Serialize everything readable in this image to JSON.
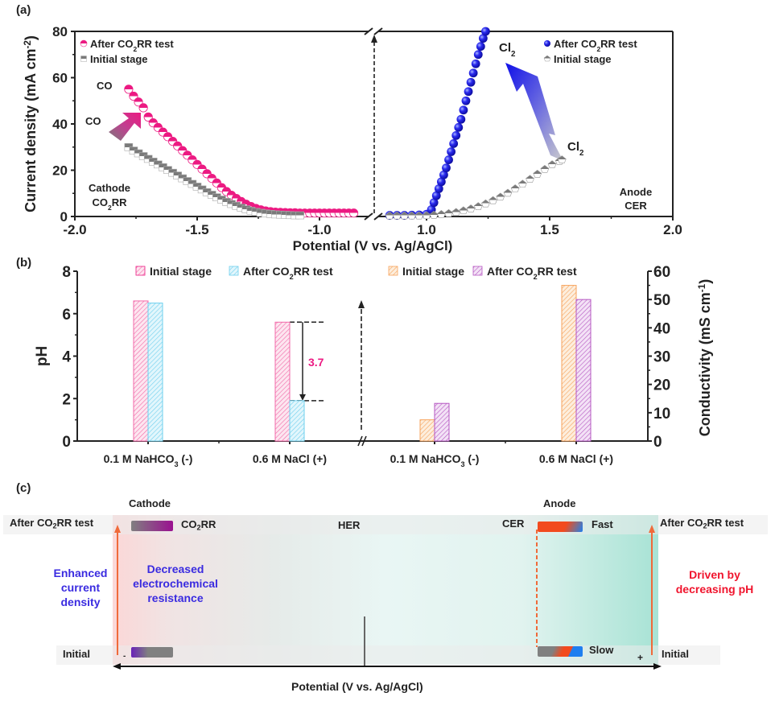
{
  "panels": {
    "a": {
      "letter": "(a)"
    },
    "b": {
      "letter": "(b)"
    },
    "c": {
      "letter": "(c)"
    }
  },
  "chart_data": [
    {
      "id": "a",
      "type": "scatter",
      "title": "",
      "xlabel": "Potential (V vs. Ag/AgCl)",
      "ylabel": "Current density (mA cm^-2)",
      "ylabel_main": "Current density",
      "ylabel_unit": "(mA cm",
      "ylabel_sup": "-2",
      "ylabel_close": ")",
      "xlabel_main": "Potential",
      "xlabel_unit": "(V vs. Ag/AgCl)",
      "axis_break": true,
      "x_left_range": [
        -2.0,
        -0.83
      ],
      "x_right_range": [
        0.83,
        2.0
      ],
      "ylim": [
        0,
        80
      ],
      "yticks": [
        0,
        20,
        40,
        60,
        80
      ],
      "xticks_left": [
        "-2.0",
        "-1.5",
        "-1.0"
      ],
      "xticks_left_values": [
        -2.0,
        -1.5,
        -1.0
      ],
      "xticks_right": [
        "1.0",
        "1.5",
        "2.0"
      ],
      "xticks_right_values": [
        1.0,
        1.5,
        2.0
      ],
      "series": [
        {
          "name": "After CO2RR test (cathode)",
          "side": "left",
          "color": "#ec1a82",
          "marker": "half-circle",
          "x": [
            -1.78,
            -1.76,
            -1.74,
            -1.72,
            -1.7,
            -1.68,
            -1.66,
            -1.64,
            -1.62,
            -1.6,
            -1.58,
            -1.56,
            -1.54,
            -1.52,
            -1.5,
            -1.48,
            -1.46,
            -1.44,
            -1.42,
            -1.4,
            -1.38,
            -1.36,
            -1.34,
            -1.32,
            -1.3,
            -1.28,
            -1.26,
            -1.24,
            -1.22,
            -1.2,
            -1.18,
            -1.16,
            -1.14,
            -1.12,
            -1.1,
            -1.08,
            -1.06,
            -1.04,
            -1.02,
            -1.0,
            -0.98,
            -0.96,
            -0.94,
            -0.92,
            -0.9,
            -0.88,
            -0.86
          ],
          "y": [
            55,
            52,
            49.5,
            47,
            43,
            40.5,
            38.5,
            36.5,
            34.5,
            32.5,
            30.5,
            28.5,
            26.5,
            24.5,
            22.5,
            20.5,
            18.5,
            16.5,
            14.5,
            12.5,
            10.8,
            9.2,
            7.8,
            6.5,
            5.3,
            4.3,
            3.5,
            2.9,
            2.4,
            2.1,
            1.9,
            1.8,
            1.7,
            1.6,
            1.6,
            1.5,
            1.5,
            1.5,
            1.5,
            1.5,
            1.5,
            1.5,
            1.5,
            1.5,
            1.5,
            1.5,
            1.5
          ]
        },
        {
          "name": "Initial stage (cathode)",
          "side": "left",
          "color": "#808080",
          "marker": "half-square",
          "x": [
            -1.78,
            -1.76,
            -1.74,
            -1.72,
            -1.7,
            -1.68,
            -1.66,
            -1.64,
            -1.62,
            -1.6,
            -1.58,
            -1.56,
            -1.54,
            -1.52,
            -1.5,
            -1.48,
            -1.46,
            -1.44,
            -1.42,
            -1.4,
            -1.38,
            -1.36,
            -1.34,
            -1.32,
            -1.3,
            -1.28,
            -1.26,
            -1.24,
            -1.22,
            -1.2,
            -1.18,
            -1.16,
            -1.14,
            -1.12,
            -1.1,
            -1.08
          ],
          "y": [
            30,
            28.5,
            27.3,
            26.1,
            24.9,
            23.7,
            22.5,
            21.3,
            20.1,
            18.9,
            17.7,
            16.5,
            15.3,
            14.1,
            12.9,
            11.7,
            10.5,
            9.4,
            8.3,
            7.3,
            6.3,
            5.4,
            4.6,
            3.8,
            3.1,
            2.5,
            2.0,
            1.6,
            1.3,
            1.1,
            0.9,
            0.8,
            0.7,
            0.6,
            0.5,
            0.5
          ]
        },
        {
          "name": "After CO2RR test (anode)",
          "side": "right",
          "color": "#1a1adc",
          "marker": "sphere",
          "x": [
            0.85,
            0.88,
            0.91,
            0.94,
            0.97,
            1.0,
            1.02,
            1.03,
            1.04,
            1.05,
            1.06,
            1.07,
            1.08,
            1.09,
            1.1,
            1.11,
            1.12,
            1.13,
            1.14,
            1.15,
            1.16,
            1.17,
            1.18,
            1.19,
            1.2,
            1.21,
            1.22,
            1.23,
            1.24
          ],
          "y": [
            0.5,
            0.5,
            0.5,
            0.6,
            0.7,
            1.0,
            3,
            6,
            9,
            12,
            15,
            18,
            21,
            24.5,
            28,
            31.5,
            35,
            38.5,
            42,
            46,
            50,
            54,
            58,
            62,
            66,
            70,
            73.5,
            77,
            80
          ]
        },
        {
          "name": "Initial stage (anode)",
          "side": "right",
          "color": "#8a8a8a",
          "marker": "half-pentagon",
          "x": [
            0.85,
            0.88,
            0.91,
            0.94,
            0.97,
            1.0,
            1.03,
            1.06,
            1.09,
            1.12,
            1.15,
            1.18,
            1.21,
            1.24,
            1.27,
            1.3,
            1.33,
            1.36,
            1.39,
            1.42,
            1.45,
            1.48,
            1.51,
            1.54,
            1.55
          ],
          "y": [
            0.3,
            0.3,
            0.3,
            0.3,
            0.3,
            0.4,
            0.6,
            0.9,
            1.3,
            1.8,
            2.5,
            3.3,
            4.3,
            5.5,
            6.9,
            8.4,
            10.1,
            12.0,
            14.0,
            16.1,
            18.3,
            20.4,
            22.4,
            23.9,
            24.5
          ]
        }
      ],
      "legend_left": [
        {
          "label": "After CO",
          "sub": "2",
          "rest": "RR test",
          "color": "#ec1a82"
        },
        {
          "label": "Initial stage",
          "sub": "",
          "rest": "",
          "color": "#808080"
        }
      ],
      "legend_right": [
        {
          "label": "After CO",
          "sub": "2",
          "rest": "RR test",
          "color": "#1a1adc"
        },
        {
          "label": "Initial stage",
          "sub": "",
          "rest": "",
          "color": "#8a8a8a"
        }
      ],
      "annotations": {
        "co_upper": "CO",
        "co_lower": "CO",
        "cl2_upper": "Cl",
        "cl2_lower": "Cl",
        "cl2_sub": "2",
        "cathode_line1": "Cathode",
        "cathode_line2": "CO",
        "cathode_line2_sub": "2",
        "cathode_line2_rest": "RR",
        "anode_line1": "Anode",
        "anode_line2": "CER"
      },
      "legend_placement": "top-left / top-right"
    },
    {
      "id": "b",
      "type": "bar",
      "categories_left": [
        "0.1 M NaHCO3 (-)",
        "0.6 M NaCl (+)"
      ],
      "categories_right": [
        "0.1 M NaHCO3 (-)",
        "0.6 M NaCl (+)"
      ],
      "cat_labels": [
        {
          "pre": "0.1 M NaHCO",
          "sub": "3",
          "post": " (-)"
        },
        {
          "pre": "0.6 M NaCl (+)",
          "sub": "",
          "post": ""
        }
      ],
      "ylabel_left": "pH",
      "ylim_left": [
        0,
        8
      ],
      "yticks_left": [
        0,
        2,
        4,
        6,
        8
      ],
      "ylabel_right": "Conductivity (mS cm^-1)",
      "ylabel_right_main": "Conductivity (mS cm",
      "ylabel_right_sup": "-1",
      "ylabel_right_close": ")",
      "ylim_right": [
        0,
        60
      ],
      "yticks_right": [
        0,
        10,
        20,
        30,
        40,
        50,
        60
      ],
      "series_left": [
        {
          "name": "Initial stage",
          "color": "#f26aa9",
          "values": [
            6.6,
            5.6
          ]
        },
        {
          "name": "After CO2RR test",
          "color": "#6fd0ee",
          "values": [
            6.5,
            1.9
          ]
        }
      ],
      "series_right": [
        {
          "name": "Initial stage",
          "color": "#f7a35c",
          "values": [
            7.5,
            55
          ]
        },
        {
          "name": "After CO2RR test",
          "color": "#b657c2",
          "values": [
            13.3,
            50
          ]
        }
      ],
      "legend_left": [
        {
          "label": "Initial stage",
          "sub": "",
          "rest": ""
        },
        {
          "label": "After CO",
          "sub": "2",
          "rest": "RR test"
        }
      ],
      "legend_right": [
        {
          "label": "Initial stage",
          "sub": "",
          "rest": ""
        },
        {
          "label": "After CO",
          "sub": "2",
          "rest": "RR test"
        }
      ],
      "annotation_delta": "3.7",
      "annotation_color": "#ec1a82",
      "legend_placement": "top"
    }
  ],
  "schematic": {
    "cathode_label": "Cathode",
    "anode_label": "Anode",
    "row_top_left": {
      "pre": "After CO",
      "sub": "2",
      "post": "RR test"
    },
    "row_top_right": {
      "pre": "After CO",
      "sub": "2",
      "post": "RR test"
    },
    "row_bottom_left": "Initial",
    "row_bottom_right": "Initial",
    "co2rr": {
      "pre": "CO",
      "sub": "2",
      "post": "RR"
    },
    "her": "HER",
    "cer": "CER",
    "fast": "Fast",
    "slow": "Slow",
    "minus": "-",
    "plus": "+",
    "left_note": [
      "Enhanced",
      "current",
      "density"
    ],
    "center_note": [
      "Decreased",
      "electrochemical",
      "resistance"
    ],
    "right_note": [
      "Driven by",
      "decreasing  pH"
    ],
    "axis_label": "Potential (V vs. Ag/AgCl)",
    "colors": {
      "blue_text": "#3a2be0",
      "red_text": "#f0142d",
      "arrow": "#f06a3a",
      "cer_fast": "#f24a1e",
      "cer_blue": "#1e7ef0",
      "co2rr_purple": "#9a1090",
      "gray_bar": "#808080"
    }
  }
}
